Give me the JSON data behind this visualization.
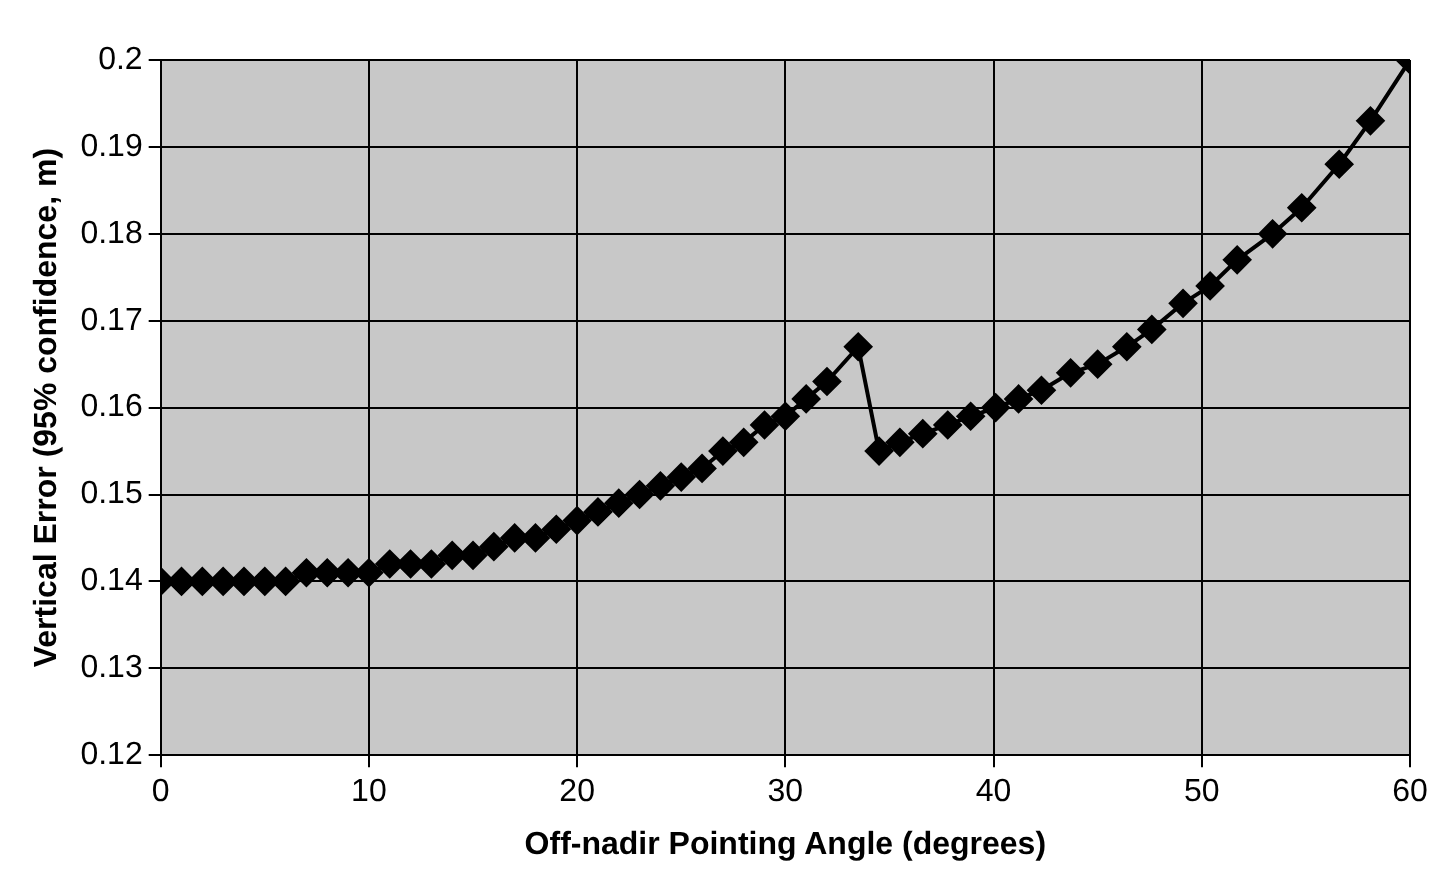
{
  "chart_data": {
    "type": "line",
    "xlabel": "Off-nadir Pointing Angle (degrees)",
    "ylabel": "Vertical Error (95% confidence, m)",
    "x": [
      0,
      1,
      2,
      3,
      4,
      5,
      6,
      7,
      8,
      9,
      10,
      11,
      12,
      13,
      14,
      15,
      16,
      17,
      18,
      19,
      20,
      21,
      22,
      23,
      24,
      25,
      26,
      27,
      28,
      29,
      30,
      31,
      32,
      33.5,
      34.5,
      35.5,
      36.6,
      37.8,
      38.9,
      40.1,
      41.2,
      42.3,
      43.7,
      45,
      46.4,
      47.6,
      49.1,
      50.4,
      51.7,
      53.4,
      54.8,
      56.6,
      58.1,
      60
    ],
    "series": [
      {
        "color": "#000000",
        "values": [
          0.14,
          0.14,
          0.14,
          0.14,
          0.14,
          0.14,
          0.14,
          0.141,
          0.141,
          0.141,
          0.141,
          0.142,
          0.142,
          0.142,
          0.143,
          0.143,
          0.144,
          0.145,
          0.145,
          0.146,
          0.147,
          0.148,
          0.149,
          0.15,
          0.151,
          0.152,
          0.153,
          0.155,
          0.156,
          0.158,
          0.159,
          0.161,
          0.163,
          0.167,
          0.155,
          0.156,
          0.157,
          0.158,
          0.159,
          0.16,
          0.161,
          0.162,
          0.164,
          0.165,
          0.167,
          0.169,
          0.172,
          0.174,
          0.177,
          0.18,
          0.183,
          0.188,
          0.193,
          0.2
        ]
      }
    ],
    "xlim": [
      0,
      60
    ],
    "xticks": [
      0,
      10,
      20,
      30,
      40,
      50,
      60
    ],
    "ylim": [
      0.12,
      0.2
    ],
    "yticks": [
      0.12,
      0.13,
      0.14,
      0.15,
      0.16,
      0.17,
      0.18,
      0.19,
      0.2
    ],
    "grid": true,
    "legend": false,
    "marker": "diamond",
    "line_style": "solid"
  }
}
